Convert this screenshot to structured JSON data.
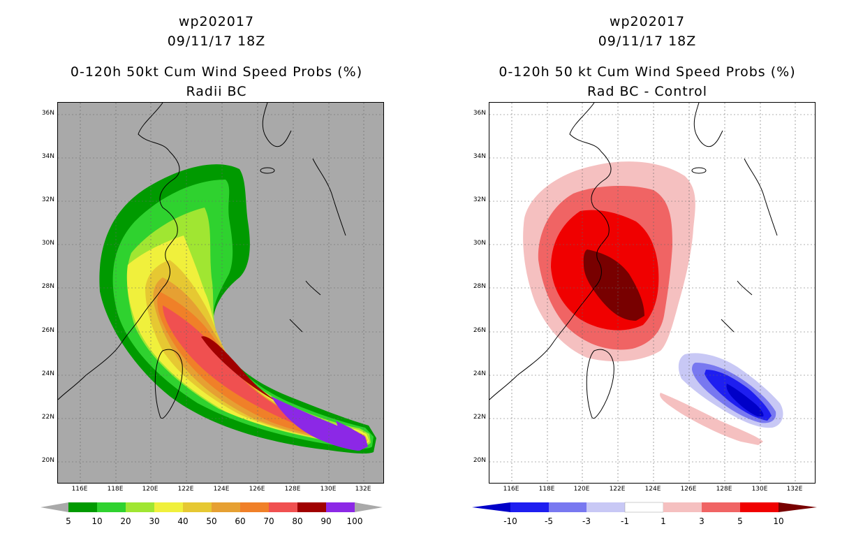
{
  "left_panel": {
    "title_line1": "wp202017",
    "title_line2": "09/11/17 18Z",
    "title_line3": "0-120h 50kt Cum Wind Speed Probs (%)",
    "title_line4": "Radii BC",
    "lat_labels": [
      "36N",
      "34N",
      "32N",
      "30N",
      "28N",
      "26N",
      "24N",
      "22N",
      "20N"
    ],
    "lon_labels": [
      "116E",
      "118E",
      "120E",
      "122E",
      "124E",
      "126E",
      "128E",
      "130E",
      "132E"
    ],
    "colorbar_labels": [
      "5",
      "10",
      "20",
      "30",
      "40",
      "50",
      "60",
      "70",
      "80",
      "90",
      "100"
    ],
    "colorbar_colors": [
      "#009a00",
      "#2fd22f",
      "#a0e632",
      "#f0f03c",
      "#e6c832",
      "#e6a032",
      "#f08028",
      "#f05050",
      "#a00000",
      "#8c28e6"
    ],
    "background_color": "#a9a9a9"
  },
  "right_panel": {
    "title_line1": "wp202017",
    "title_line2": "09/11/17 18Z",
    "title_line3": "0-120h 50 kt Cum Wind Speed Probs (%)",
    "title_line4": "Rad BC - Control",
    "lat_labels": [
      "36N",
      "34N",
      "32N",
      "30N",
      "28N",
      "26N",
      "24N",
      "22N",
      "20N"
    ],
    "lon_labels": [
      "116E",
      "118E",
      "120E",
      "122E",
      "124E",
      "126E",
      "128E",
      "130E",
      "132E"
    ],
    "colorbar_labels": [
      "-10",
      "-5",
      "-3",
      "-1",
      "1",
      "3",
      "5",
      "10"
    ],
    "colorbar_colors": [
      "#0000c8",
      "#1e1ef0",
      "#7878f0",
      "#c8c8f5",
      "#ffffff",
      "#f5c0c0",
      "#f06464",
      "#f00000",
      "#780000"
    ],
    "background_color": "#ffffff"
  }
}
